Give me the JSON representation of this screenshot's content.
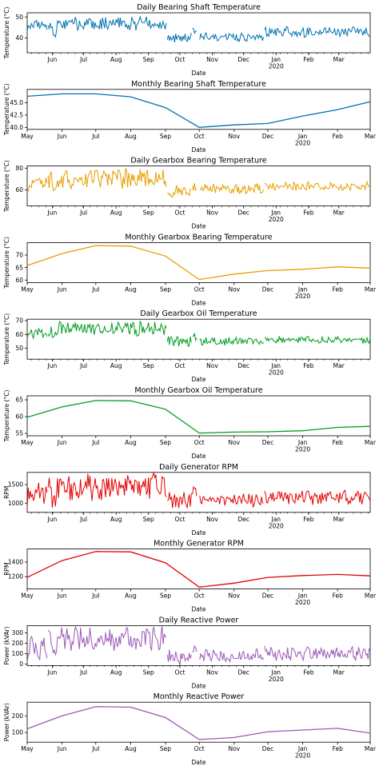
{
  "chart_data": [
    {
      "type": "line",
      "title": "Daily Bearing Shaft Temperature",
      "xlabel": "Date",
      "ylabel": "Temperature (°C)",
      "color": "#0072B2",
      "daily": true,
      "xlim": [
        "2019-05-08",
        "2020-03-31"
      ],
      "ylim": [
        33,
        52
      ],
      "yticks": [
        40,
        50
      ],
      "x_ticks": [
        "Jun",
        "Jul",
        "Aug",
        "Sep",
        "Oct",
        "Nov",
        "Dec",
        "Jan",
        "Feb",
        "Mar"
      ],
      "x_year_label": "2020",
      "segments": [
        {
          "start": "2019-05-08",
          "end": "2019-05-27",
          "base": 46,
          "amp": 2.5
        },
        {
          "start": "2019-05-28",
          "end": "2019-09-18",
          "base": 47,
          "amp": 2.8,
          "dip_start": "2019-06-01",
          "dip_end": "2019-06-05",
          "dip": 5
        },
        {
          "start": "2019-09-19",
          "end": "2019-10-12",
          "base": 40,
          "amp": 2.0
        },
        {
          "start": "2019-10-13",
          "end": "2019-10-17",
          "base": 44,
          "amp": 1.5
        },
        {
          "start": "2019-10-20",
          "end": "2019-12-20",
          "base": 40.5,
          "amp": 1.8
        },
        {
          "start": "2019-12-21",
          "end": "2020-03-31",
          "base": 43,
          "amp": 2.2
        }
      ]
    },
    {
      "type": "line",
      "title": "Monthly Bearing Shaft Temperature",
      "xlabel": "Date",
      "ylabel": "Temperature (°C)",
      "color": "#0072B2",
      "xlim": [
        "2019-05-01",
        "2020-03-01"
      ],
      "ylim": [
        39.6,
        47.7
      ],
      "yticks": [
        40.0,
        42.5,
        45.0
      ],
      "ytick_labels": [
        "40.0",
        "42.5",
        "45.0"
      ],
      "x_ticks": [
        "May",
        "Jun",
        "Jul",
        "Aug",
        "Sep",
        "Oct",
        "Nov",
        "Dec",
        "Jan",
        "Feb",
        "Mar"
      ],
      "x_year_label": "2020",
      "x": [
        "2019-05-01",
        "2019-06-01",
        "2019-07-01",
        "2019-08-01",
        "2019-09-01",
        "2019-10-01",
        "2019-11-01",
        "2019-12-01",
        "2020-01-01",
        "2020-02-01",
        "2020-03-01"
      ],
      "y": [
        46.3,
        46.8,
        46.8,
        46.2,
        44.0,
        40.0,
        40.5,
        40.8,
        42.3,
        43.6,
        45.2
      ]
    },
    {
      "type": "line",
      "title": "Daily Gearbox Bearing Temperature",
      "xlabel": "Date",
      "ylabel": "Temperature (°C)",
      "color": "#E69F00",
      "daily": true,
      "xlim": [
        "2019-05-08",
        "2020-03-31"
      ],
      "ylim": [
        45,
        82
      ],
      "yticks": [
        60,
        80
      ],
      "x_ticks": [
        "Jun",
        "Jul",
        "Aug",
        "Sep",
        "Oct",
        "Nov",
        "Dec",
        "Jan",
        "Feb",
        "Mar"
      ],
      "x_year_label": "2020",
      "segments": [
        {
          "start": "2019-05-08",
          "end": "2019-05-27",
          "base": 65,
          "amp": 6
        },
        {
          "start": "2019-05-28",
          "end": "2019-09-18",
          "base": 70,
          "amp": 8,
          "dip_start": "2019-06-01",
          "dip_end": "2019-06-05",
          "dip": 10
        },
        {
          "start": "2019-09-19",
          "end": "2019-10-12",
          "base": 58,
          "amp": 5
        },
        {
          "start": "2019-10-13",
          "end": "2019-10-17",
          "base": 63,
          "amp": 4
        },
        {
          "start": "2019-10-20",
          "end": "2019-12-20",
          "base": 61,
          "amp": 4
        },
        {
          "start": "2019-12-21",
          "end": "2020-03-31",
          "base": 63,
          "amp": 3.5
        }
      ]
    },
    {
      "type": "line",
      "title": "Monthly Gearbox Bearing Temperature",
      "xlabel": "Date",
      "ylabel": "Temperature (°C)",
      "color": "#E69F00",
      "xlim": [
        "2019-05-01",
        "2020-03-01"
      ],
      "ylim": [
        59,
        75
      ],
      "yticks": [
        60,
        65,
        70
      ],
      "x_ticks": [
        "May",
        "Jun",
        "Jul",
        "Aug",
        "Sep",
        "Oct",
        "Nov",
        "Dec",
        "Jan",
        "Feb",
        "Mar"
      ],
      "x_year_label": "2020",
      "x": [
        "2019-05-01",
        "2019-06-01",
        "2019-07-01",
        "2019-08-01",
        "2019-09-01",
        "2019-10-01",
        "2019-11-01",
        "2019-12-01",
        "2020-01-01",
        "2020-02-01",
        "2020-03-01"
      ],
      "y": [
        65.8,
        70.6,
        73.8,
        73.6,
        69.6,
        60.2,
        62.4,
        63.8,
        64.3,
        65.3,
        64.8
      ]
    },
    {
      "type": "line",
      "title": "Daily Gearbox Oil Temperature",
      "xlabel": "Date",
      "ylabel": "Temperature (°C)",
      "color": "#009E20",
      "daily": true,
      "xlim": [
        "2019-05-08",
        "2020-03-31"
      ],
      "ylim": [
        42,
        71
      ],
      "yticks": [
        50,
        60,
        70
      ],
      "x_ticks": [
        "Jun",
        "Jul",
        "Aug",
        "Sep",
        "Oct",
        "Nov",
        "Dec",
        "Jan",
        "Feb",
        "Mar"
      ],
      "x_year_label": "2020",
      "segments": [
        {
          "start": "2019-05-08",
          "end": "2019-05-27",
          "base": 61,
          "amp": 3.5
        },
        {
          "start": "2019-05-28",
          "end": "2019-09-18",
          "base": 64,
          "amp": 4.5,
          "dip_start": "2019-06-01",
          "dip_end": "2019-06-05",
          "dip": 6
        },
        {
          "start": "2019-09-19",
          "end": "2019-10-12",
          "base": 55,
          "amp": 3.5
        },
        {
          "start": "2019-10-13",
          "end": "2019-10-17",
          "base": 59,
          "amp": 3
        },
        {
          "start": "2019-10-20",
          "end": "2019-12-20",
          "base": 55,
          "amp": 2.5
        },
        {
          "start": "2019-12-21",
          "end": "2020-03-31",
          "base": 56,
          "amp": 2.2
        }
      ]
    },
    {
      "type": "line",
      "title": "Monthly Gearbox Oil Temperature",
      "xlabel": "Date",
      "ylabel": "Temperature (°C)",
      "color": "#009E20",
      "xlim": [
        "2019-05-01",
        "2020-03-01"
      ],
      "ylim": [
        54.3,
        66.2
      ],
      "yticks": [
        55,
        60,
        65
      ],
      "x_ticks": [
        "May",
        "Jun",
        "Jul",
        "Aug",
        "Sep",
        "Oct",
        "Nov",
        "Dec",
        "Jan",
        "Feb",
        "Mar"
      ],
      "x_year_label": "2020",
      "x": [
        "2019-05-01",
        "2019-06-01",
        "2019-07-01",
        "2019-08-01",
        "2019-09-01",
        "2019-10-01",
        "2019-11-01",
        "2019-12-01",
        "2020-01-01",
        "2020-02-01",
        "2020-03-01"
      ],
      "y": [
        59.8,
        62.9,
        64.8,
        64.7,
        62.2,
        55.1,
        55.4,
        55.5,
        55.8,
        56.8,
        57.1
      ]
    },
    {
      "type": "line",
      "title": "Daily Generator RPM",
      "xlabel": "Date",
      "ylabel": "RPM",
      "color": "#E60000",
      "daily": true,
      "xlim": [
        "2019-05-08",
        "2020-03-31"
      ],
      "ylim": [
        750,
        1830
      ],
      "yticks": [
        1000,
        1500
      ],
      "x_ticks": [
        "Jun",
        "Jul",
        "Aug",
        "Sep",
        "Oct",
        "Nov",
        "Dec",
        "Jan",
        "Feb",
        "Mar"
      ],
      "x_year_label": "2020",
      "segments": [
        {
          "start": "2019-05-08",
          "end": "2019-05-27",
          "base": 1200,
          "amp": 300
        },
        {
          "start": "2019-05-28",
          "end": "2019-09-18",
          "base": 1450,
          "amp": 330,
          "dip_start": "2019-06-01",
          "dip_end": "2019-06-05",
          "dip": 350
        },
        {
          "start": "2019-09-19",
          "end": "2019-10-12",
          "base": 1050,
          "amp": 220
        },
        {
          "start": "2019-10-13",
          "end": "2019-10-17",
          "base": 1300,
          "amp": 200
        },
        {
          "start": "2019-10-20",
          "end": "2019-12-20",
          "base": 1080,
          "amp": 150
        },
        {
          "start": "2019-12-21",
          "end": "2020-03-31",
          "base": 1150,
          "amp": 170
        }
      ]
    },
    {
      "type": "line",
      "title": "Monthly Generator RPM",
      "xlabel": "Date",
      "ylabel": "RPM",
      "color": "#E60000",
      "xlim": [
        "2019-05-01",
        "2020-03-01"
      ],
      "ylim": [
        1030,
        1580
      ],
      "yticks": [
        1200,
        1400
      ],
      "x_ticks": [
        "May",
        "Jun",
        "Jul",
        "Aug",
        "Sep",
        "Oct",
        "Nov",
        "Dec",
        "Jan",
        "Feb",
        "Mar"
      ],
      "x_year_label": "2020",
      "x": [
        "2019-05-01",
        "2019-06-01",
        "2019-07-01",
        "2019-08-01",
        "2019-09-01",
        "2019-10-01",
        "2019-11-01",
        "2019-12-01",
        "2020-01-01",
        "2020-02-01",
        "2020-03-01"
      ],
      "y": [
        1190,
        1420,
        1545,
        1540,
        1390,
        1055,
        1110,
        1190,
        1215,
        1230,
        1210
      ]
    },
    {
      "type": "line",
      "title": "Daily Reactive Power",
      "xlabel": "Date",
      "ylabel": "Power (kVAr)",
      "color": "#9B59B6",
      "daily": true,
      "xlim": [
        "2019-05-08",
        "2020-03-31"
      ],
      "ylim": [
        -15,
        370
      ],
      "yticks": [
        0,
        100,
        200,
        300
      ],
      "x_ticks": [
        "Jun",
        "Jul",
        "Aug",
        "Sep",
        "Oct",
        "Nov",
        "Dec",
        "Jan",
        "Feb",
        "Mar"
      ],
      "x_year_label": "2020",
      "segments": [
        {
          "start": "2019-05-08",
          "end": "2019-05-27",
          "base": 140,
          "amp": 120
        },
        {
          "start": "2019-05-28",
          "end": "2019-09-18",
          "base": 250,
          "amp": 110,
          "dip_start": "2019-06-01",
          "dip_end": "2019-06-05",
          "dip": 170
        },
        {
          "start": "2019-09-19",
          "end": "2019-10-12",
          "base": 70,
          "amp": 70
        },
        {
          "start": "2019-10-13",
          "end": "2019-10-17",
          "base": 150,
          "amp": 60
        },
        {
          "start": "2019-10-20",
          "end": "2019-12-20",
          "base": 80,
          "amp": 55
        },
        {
          "start": "2019-12-21",
          "end": "2020-03-31",
          "base": 100,
          "amp": 60
        }
      ]
    },
    {
      "type": "line",
      "title": "Monthly Reactive Power",
      "xlabel": "Date",
      "ylabel": "Power (kVAr)",
      "color": "#9B59B6",
      "xlim": [
        "2019-05-01",
        "2020-03-01"
      ],
      "ylim": [
        42,
        282
      ],
      "yticks": [
        100,
        200
      ],
      "x_ticks": [
        "May",
        "Jun",
        "Jul",
        "Aug",
        "Sep",
        "Oct",
        "Nov",
        "Dec",
        "Jan",
        "Feb",
        "Mar"
      ],
      "x_year_label": "2020",
      "x": [
        "2019-05-01",
        "2019-06-01",
        "2019-07-01",
        "2019-08-01",
        "2019-09-01",
        "2019-10-01",
        "2019-11-01",
        "2019-12-01",
        "2020-01-01",
        "2020-02-01",
        "2020-03-01"
      ],
      "y": [
        122,
        200,
        255,
        252,
        190,
        58,
        70,
        105,
        115,
        125,
        96
      ]
    }
  ]
}
